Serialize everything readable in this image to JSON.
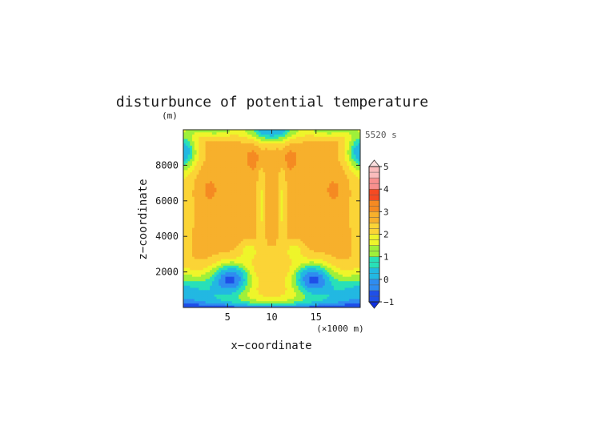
{
  "chart_data": {
    "type": "heatmap",
    "title": "disturbunce of potential temperature",
    "time_label": "5520 s",
    "xlabel": "x−coordinate",
    "x_unit": "(×1000 m)",
    "ylabel": "z−coordinate",
    "y_unit": "(m)",
    "xlim": [
      0,
      20
    ],
    "ylim": [
      0,
      10000
    ],
    "x_ticks": [
      5,
      10,
      15
    ],
    "x_tick_labels": [
      "5",
      "10",
      "15"
    ],
    "y_ticks": [
      2000,
      4000,
      6000,
      8000
    ],
    "y_tick_labels": [
      "2000",
      "4000",
      "6000",
      "8000"
    ],
    "colorbar": {
      "min": -1,
      "max": 5,
      "step": 0.25,
      "tick_values": [
        -1,
        0,
        1,
        2,
        3,
        4,
        5
      ],
      "tick_labels": [
        "−1",
        "0",
        "1",
        "2",
        "3",
        "4",
        "5"
      ],
      "extend": "both"
    },
    "color_levels": [
      {
        "from": -1.0,
        "to": -0.5,
        "color": "#1f4fe8"
      },
      {
        "from": -0.5,
        "to": 0.0,
        "color": "#2f8cf0"
      },
      {
        "from": 0.0,
        "to": 0.5,
        "color": "#22b8e2"
      },
      {
        "from": 0.5,
        "to": 1.0,
        "color": "#28e0b8"
      },
      {
        "from": 1.0,
        "to": 1.5,
        "color": "#9ff03a"
      },
      {
        "from": 1.5,
        "to": 2.0,
        "color": "#eef52a"
      },
      {
        "from": 2.0,
        "to": 2.5,
        "color": "#fbd436"
      },
      {
        "from": 2.5,
        "to": 3.0,
        "color": "#f7b02c"
      },
      {
        "from": 3.0,
        "to": 3.5,
        "color": "#f58a22"
      },
      {
        "from": 3.5,
        "to": 4.0,
        "color": "#f44a22"
      },
      {
        "from": 4.0,
        "to": 4.5,
        "color": "#f8908e"
      },
      {
        "from": 4.5,
        "to": 5.0,
        "color": "#fbbcbc"
      }
    ],
    "grid": false,
    "field_summary": {
      "interior_dominant_value": 2.7,
      "bottom_boundary_value": -0.5,
      "lower_side_values": 0.4,
      "upper_corner_values": 0.3,
      "top_center_value": 0.0,
      "local_maxima": [
        {
          "x": 3.0,
          "z": 6600,
          "value": 3.1
        },
        {
          "x": 17.0,
          "z": 6600,
          "value": 3.1
        },
        {
          "x": 8.0,
          "z": 8400,
          "value": 3.2
        },
        {
          "x": 12.0,
          "z": 8400,
          "value": 3.2
        }
      ],
      "local_minima": [
        {
          "x": 5.5,
          "z": 1700,
          "value": -0.1
        },
        {
          "x": 14.5,
          "z": 1700,
          "value": -0.1
        },
        {
          "x": 10.0,
          "z": 9600,
          "value": -0.2
        }
      ]
    }
  }
}
